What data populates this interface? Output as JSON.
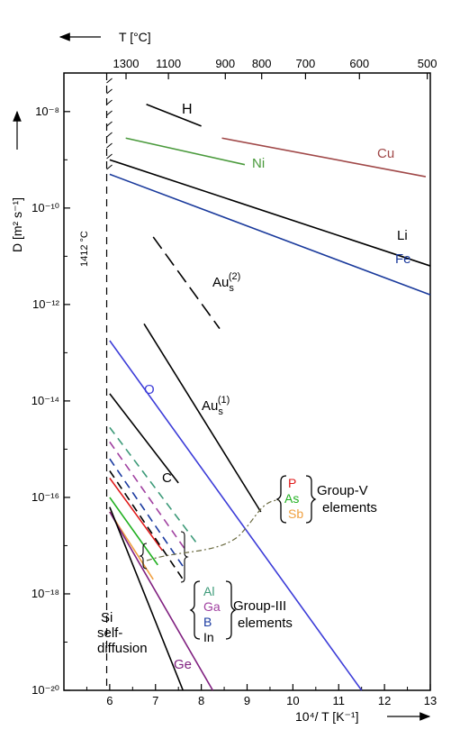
{
  "chart_data": {
    "type": "line",
    "title": "",
    "xlabel": "10⁴/ T [K⁻¹]",
    "ylabel": "D [m² s⁻¹]",
    "top_axis_label": "T [°C]",
    "xlim": [
      5,
      13
    ],
    "ylim_exponent": [
      -20,
      -7.2
    ],
    "log_scale_y": true,
    "x_ticks": [
      "6",
      "7",
      "8",
      "9",
      "10",
      "11",
      "12",
      "13"
    ],
    "y_ticks": [
      {
        "exp": -8,
        "label": "10⁻⁸"
      },
      {
        "exp": -10,
        "label": "10⁻¹⁰"
      },
      {
        "exp": -12,
        "label": "10⁻¹²"
      },
      {
        "exp": -14,
        "label": "10⁻¹⁴"
      },
      {
        "exp": -16,
        "label": "10⁻¹⁶"
      },
      {
        "exp": -18,
        "label": "10⁻¹⁸"
      },
      {
        "exp": -20,
        "label": "10⁻²⁰"
      }
    ],
    "top_ticks": [
      "1300",
      "1100",
      "900",
      "800",
      "700",
      "600",
      "500"
    ],
    "melting_label": "1412 °C",
    "series": [
      {
        "name": "H",
        "color": "#000000",
        "dash": "solid",
        "x": [
          6.8,
          8.0
        ],
        "y": [
          -7.85,
          -8.3
        ]
      },
      {
        "name": "Ni",
        "color": "#4a9a3c",
        "dash": "solid",
        "x": [
          6.35,
          8.95
        ],
        "y": [
          -8.55,
          -9.1
        ]
      },
      {
        "name": "Cu",
        "color": "#a04848",
        "dash": "solid",
        "x": [
          8.45,
          12.9
        ],
        "y": [
          -8.55,
          -9.35
        ]
      },
      {
        "name": "Li",
        "color": "#000000",
        "dash": "solid",
        "x": [
          6.0,
          13.0
        ],
        "y": [
          -9.0,
          -11.2
        ]
      },
      {
        "name": "Fe",
        "color": "#1a3a9c",
        "dash": "solid",
        "x": [
          6.0,
          13.0
        ],
        "y": [
          -9.3,
          -11.8
        ]
      },
      {
        "name": "Aus(2)",
        "color": "#000000",
        "dash": "longdash",
        "x": [
          6.95,
          8.4
        ],
        "y": [
          -10.6,
          -12.5
        ]
      },
      {
        "name": "Aus(1)",
        "color": "#000000",
        "dash": "solid",
        "x": [
          6.75,
          9.3
        ],
        "y": [
          -12.4,
          -16.3
        ]
      },
      {
        "name": "O",
        "color": "#3c3cd8",
        "dash": "solid",
        "x": [
          6.0,
          11.5
        ],
        "y": [
          -12.75,
          -20.0
        ]
      },
      {
        "name": "C",
        "color": "#000000",
        "dash": "solid",
        "x": [
          6.0,
          7.5
        ],
        "y": [
          -13.85,
          -15.7
        ]
      },
      {
        "name": "P",
        "color": "#e01818",
        "dash": "solid",
        "x": [
          6.0,
          7.15
        ],
        "y": [
          -15.6,
          -17.1
        ]
      },
      {
        "name": "As",
        "color": "#20b020",
        "dash": "solid",
        "x": [
          6.0,
          7.05
        ],
        "y": [
          -16.0,
          -17.4
        ]
      },
      {
        "name": "Sb",
        "color": "#f0a040",
        "dash": "solid",
        "x": [
          6.0,
          6.95
        ],
        "y": [
          -16.3,
          -17.7
        ]
      },
      {
        "name": "Al",
        "color": "#3c9a78",
        "dash": "dashed",
        "x": [
          6.0,
          7.9
        ],
        "y": [
          -14.55,
          -16.95
        ]
      },
      {
        "name": "Ga",
        "color": "#a040a0",
        "dash": "dashed",
        "x": [
          6.0,
          7.7
        ],
        "y": [
          -14.85,
          -17.15
        ]
      },
      {
        "name": "B",
        "color": "#1a3aa0",
        "dash": "dashed",
        "x": [
          6.0,
          7.65
        ],
        "y": [
          -15.2,
          -17.5
        ]
      },
      {
        "name": "In",
        "color": "#000000",
        "dash": "dashed",
        "x": [
          6.0,
          7.6
        ],
        "y": [
          -15.45,
          -17.7
        ]
      },
      {
        "name": "Ge",
        "color": "#802080",
        "dash": "solid",
        "x": [
          6.0,
          8.25
        ],
        "y": [
          -16.3,
          -20.0
        ]
      },
      {
        "name": "Si self-diffusion",
        "color": "#000000",
        "dash": "solid",
        "x": [
          6.0,
          7.6
        ],
        "y": [
          -16.2,
          -20.0
        ]
      }
    ],
    "series_labels": {
      "H": "H",
      "Ni": "Ni",
      "Cu": "Cu",
      "Li": "Li",
      "Fe": "Fe",
      "Aus2_main": "Au",
      "Aus2_sub": "s",
      "Aus2_sup": "(2)",
      "Aus1_main": "Au",
      "Aus1_sub": "s",
      "Aus1_sup": "(1)",
      "O": "O",
      "C": "C",
      "Ge": "Ge"
    },
    "group_v": {
      "items": [
        "P",
        "As",
        "Sb"
      ],
      "colors": [
        "#e01818",
        "#20b020",
        "#f0a040"
      ],
      "label_line1": "Group-V",
      "label_line2": "elements"
    },
    "group_iii": {
      "items": [
        "Al",
        "Ga",
        "B",
        "In"
      ],
      "colors": [
        "#3c9a78",
        "#a040a0",
        "#1a3aa0",
        "#000000"
      ],
      "label_line1": "Group-III",
      "label_line2": "elements"
    },
    "si_label": [
      "Si",
      "self-",
      "diffusion"
    ]
  }
}
